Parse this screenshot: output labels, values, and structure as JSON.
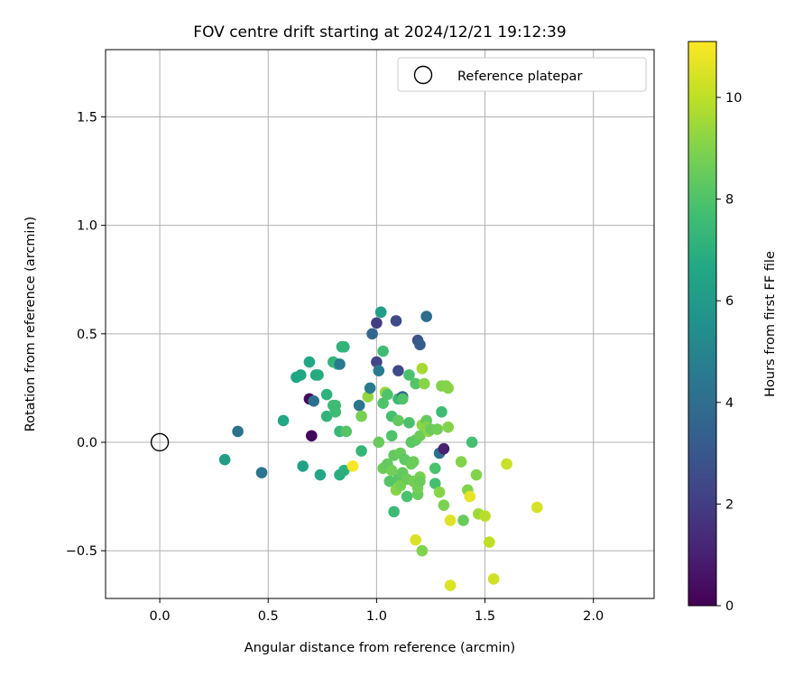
{
  "chart_data": {
    "type": "scatter",
    "title": "FOV centre drift starting at 2024/12/21 19:12:39",
    "xlabel": "Angular distance from reference (arcmin)",
    "ylabel": "Rotation from reference (arcmin)",
    "xlim": [
      -0.25,
      2.28
    ],
    "ylim": [
      -0.72,
      1.81
    ],
    "xticks": [
      "0.0",
      "0.5",
      "1.0",
      "1.5",
      "2.0"
    ],
    "yticks": [
      "−0.5",
      "0.0",
      "0.5",
      "1.0",
      "1.5"
    ],
    "grid": true,
    "legend": {
      "position": "top-right",
      "label": "Reference platepar"
    },
    "reference_point": {
      "x": 0.0,
      "y": 0.0
    },
    "colorbar": {
      "label": "Hours from first FF file",
      "min": 0,
      "max": 11.1,
      "ticks": [
        "0",
        "2",
        "4",
        "6",
        "8",
        "10"
      ],
      "colormap": "viridis"
    },
    "points": [
      {
        "x": 0.3,
        "y": -0.08,
        "h": 6.2
      },
      {
        "x": 0.36,
        "y": 0.05,
        "h": 4.2
      },
      {
        "x": 0.47,
        "y": -0.14,
        "h": 4.3
      },
      {
        "x": 0.57,
        "y": 0.1,
        "h": 6.6
      },
      {
        "x": 0.63,
        "y": 0.3,
        "h": 6.6
      },
      {
        "x": 0.65,
        "y": 0.31,
        "h": 6.6
      },
      {
        "x": 0.66,
        "y": -0.11,
        "h": 6.3
      },
      {
        "x": 0.69,
        "y": 0.37,
        "h": 6.6
      },
      {
        "x": 0.69,
        "y": 0.2,
        "h": 0.3
      },
      {
        "x": 0.7,
        "y": 0.03,
        "h": 0.2
      },
      {
        "x": 0.71,
        "y": 0.19,
        "h": 4.1
      },
      {
        "x": 0.72,
        "y": 0.31,
        "h": 6.8
      },
      {
        "x": 0.73,
        "y": 0.31,
        "h": 6.8
      },
      {
        "x": 0.74,
        "y": -0.15,
        "h": 6.6
      },
      {
        "x": 0.77,
        "y": 0.22,
        "h": 7.1
      },
      {
        "x": 0.77,
        "y": 0.12,
        "h": 7.2
      },
      {
        "x": 0.8,
        "y": 0.37,
        "h": 7.2
      },
      {
        "x": 0.8,
        "y": 0.17,
        "h": 7.5
      },
      {
        "x": 0.81,
        "y": 0.17,
        "h": 7.6
      },
      {
        "x": 0.81,
        "y": 0.14,
        "h": 7.6
      },
      {
        "x": 0.82,
        "y": 0.36,
        "h": 7.4
      },
      {
        "x": 0.83,
        "y": 0.36,
        "h": 4.5
      },
      {
        "x": 0.83,
        "y": 0.05,
        "h": 7.4
      },
      {
        "x": 0.83,
        "y": -0.15,
        "h": 6.9
      },
      {
        "x": 0.84,
        "y": 0.44,
        "h": 7.1
      },
      {
        "x": 0.85,
        "y": 0.44,
        "h": 7.2
      },
      {
        "x": 0.85,
        "y": -0.13,
        "h": 7.0
      },
      {
        "x": 0.86,
        "y": 0.05,
        "h": 8.1
      },
      {
        "x": 0.89,
        "y": -0.11,
        "h": 11.0
      },
      {
        "x": 0.92,
        "y": 0.17,
        "h": 4.3
      },
      {
        "x": 0.93,
        "y": 0.12,
        "h": 8.8
      },
      {
        "x": 0.93,
        "y": -0.04,
        "h": 7.3
      },
      {
        "x": 0.96,
        "y": 0.21,
        "h": 9.3
      },
      {
        "x": 0.97,
        "y": 0.25,
        "h": 4.6
      },
      {
        "x": 0.98,
        "y": 0.5,
        "h": 3.7
      },
      {
        "x": 1.0,
        "y": 0.55,
        "h": 2.0
      },
      {
        "x": 1.0,
        "y": 0.37,
        "h": 2.3
      },
      {
        "x": 1.01,
        "y": 0.33,
        "h": 4.6
      },
      {
        "x": 1.01,
        "y": 0.0,
        "h": 8.5
      },
      {
        "x": 1.02,
        "y": 0.6,
        "h": 6.0
      },
      {
        "x": 1.02,
        "y": 0.6,
        "h": 6.2
      },
      {
        "x": 1.03,
        "y": 0.42,
        "h": 7.6
      },
      {
        "x": 1.03,
        "y": 0.18,
        "h": 8.0
      },
      {
        "x": 1.03,
        "y": -0.12,
        "h": 8.6
      },
      {
        "x": 1.04,
        "y": 0.23,
        "h": 9.4
      },
      {
        "x": 1.05,
        "y": 0.22,
        "h": 8.0
      },
      {
        "x": 1.05,
        "y": -0.1,
        "h": 8.4
      },
      {
        "x": 1.06,
        "y": -0.18,
        "h": 8.1
      },
      {
        "x": 1.07,
        "y": 0.12,
        "h": 7.8
      },
      {
        "x": 1.07,
        "y": 0.03,
        "h": 8.0
      },
      {
        "x": 1.07,
        "y": -0.13,
        "h": 8.7
      },
      {
        "x": 1.08,
        "y": -0.06,
        "h": 8.4
      },
      {
        "x": 1.08,
        "y": -0.32,
        "h": 7.5
      },
      {
        "x": 1.09,
        "y": 0.56,
        "h": 2.5
      },
      {
        "x": 1.09,
        "y": -0.22,
        "h": 9.1
      },
      {
        "x": 1.1,
        "y": 0.33,
        "h": 2.5
      },
      {
        "x": 1.1,
        "y": 0.2,
        "h": 7.5
      },
      {
        "x": 1.1,
        "y": 0.1,
        "h": 8.4
      },
      {
        "x": 1.1,
        "y": -0.17,
        "h": 8.2
      },
      {
        "x": 1.11,
        "y": -0.05,
        "h": 8.5
      },
      {
        "x": 1.11,
        "y": -0.2,
        "h": 8.8
      },
      {
        "x": 1.12,
        "y": 0.21,
        "h": 3.6
      },
      {
        "x": 1.12,
        "y": 0.2,
        "h": 8.0
      },
      {
        "x": 1.12,
        "y": -0.14,
        "h": 8.4
      },
      {
        "x": 1.13,
        "y": -0.08,
        "h": 8.3
      },
      {
        "x": 1.14,
        "y": -0.17,
        "h": 8.6
      },
      {
        "x": 1.14,
        "y": -0.25,
        "h": 7.9
      },
      {
        "x": 1.15,
        "y": 0.31,
        "h": 7.9
      },
      {
        "x": 1.15,
        "y": 0.09,
        "h": 7.9
      },
      {
        "x": 1.16,
        "y": -0.1,
        "h": 8.6
      },
      {
        "x": 1.16,
        "y": 0.0,
        "h": 8.2
      },
      {
        "x": 1.17,
        "y": -0.09,
        "h": 8.6
      },
      {
        "x": 1.17,
        "y": -0.18,
        "h": 8.7
      },
      {
        "x": 1.18,
        "y": 0.27,
        "h": 8.1
      },
      {
        "x": 1.18,
        "y": 0.01,
        "h": 8.3
      },
      {
        "x": 1.18,
        "y": -0.45,
        "h": 10.5
      },
      {
        "x": 1.19,
        "y": 0.47,
        "h": 2.8
      },
      {
        "x": 1.19,
        "y": -0.24,
        "h": 8.5
      },
      {
        "x": 1.19,
        "y": -0.21,
        "h": 8.7
      },
      {
        "x": 1.2,
        "y": 0.45,
        "h": 3.2
      },
      {
        "x": 1.2,
        "y": 0.03,
        "h": 8.6
      },
      {
        "x": 1.2,
        "y": -0.16,
        "h": 8.8
      },
      {
        "x": 1.2,
        "y": -0.18,
        "h": 8.6
      },
      {
        "x": 1.21,
        "y": 0.34,
        "h": 9.6
      },
      {
        "x": 1.21,
        "y": 0.08,
        "h": 9.2
      },
      {
        "x": 1.21,
        "y": -0.5,
        "h": 9.0
      },
      {
        "x": 1.22,
        "y": 0.27,
        "h": 9.1
      },
      {
        "x": 1.23,
        "y": 0.58,
        "h": 3.9
      },
      {
        "x": 1.23,
        "y": 0.1,
        "h": 8.4
      },
      {
        "x": 1.23,
        "y": 0.07,
        "h": 9.0
      },
      {
        "x": 1.24,
        "y": 0.05,
        "h": 9.2
      },
      {
        "x": 1.25,
        "y": 0.06,
        "h": 8.5
      },
      {
        "x": 1.27,
        "y": -0.12,
        "h": 7.9
      },
      {
        "x": 1.27,
        "y": -0.19,
        "h": 7.8
      },
      {
        "x": 1.28,
        "y": 0.06,
        "h": 8.7
      },
      {
        "x": 1.29,
        "y": -0.05,
        "h": 4.0
      },
      {
        "x": 1.29,
        "y": -0.23,
        "h": 9.1
      },
      {
        "x": 1.3,
        "y": 0.26,
        "h": 9.0
      },
      {
        "x": 1.3,
        "y": 0.14,
        "h": 7.6
      },
      {
        "x": 1.31,
        "y": -0.03,
        "h": 1.0
      },
      {
        "x": 1.31,
        "y": -0.29,
        "h": 8.9
      },
      {
        "x": 1.32,
        "y": 0.26,
        "h": 9.0
      },
      {
        "x": 1.33,
        "y": 0.25,
        "h": 9.1
      },
      {
        "x": 1.33,
        "y": 0.07,
        "h": 9.0
      },
      {
        "x": 1.34,
        "y": -0.36,
        "h": 10.6
      },
      {
        "x": 1.34,
        "y": -0.66,
        "h": 10.5
      },
      {
        "x": 1.39,
        "y": -0.09,
        "h": 9.0
      },
      {
        "x": 1.4,
        "y": -0.36,
        "h": 8.5
      },
      {
        "x": 1.42,
        "y": -0.22,
        "h": 9.0
      },
      {
        "x": 1.43,
        "y": -0.25,
        "h": 10.7
      },
      {
        "x": 1.44,
        "y": 0.0,
        "h": 7.8
      },
      {
        "x": 1.46,
        "y": -0.15,
        "h": 9.0
      },
      {
        "x": 1.47,
        "y": -0.33,
        "h": 9.5
      },
      {
        "x": 1.5,
        "y": -0.34,
        "h": 9.9
      },
      {
        "x": 1.52,
        "y": -0.46,
        "h": 10.0
      },
      {
        "x": 1.54,
        "y": -0.63,
        "h": 10.3
      },
      {
        "x": 1.6,
        "y": -0.1,
        "h": 10.2
      },
      {
        "x": 1.74,
        "y": -0.3,
        "h": 10.4
      }
    ]
  }
}
